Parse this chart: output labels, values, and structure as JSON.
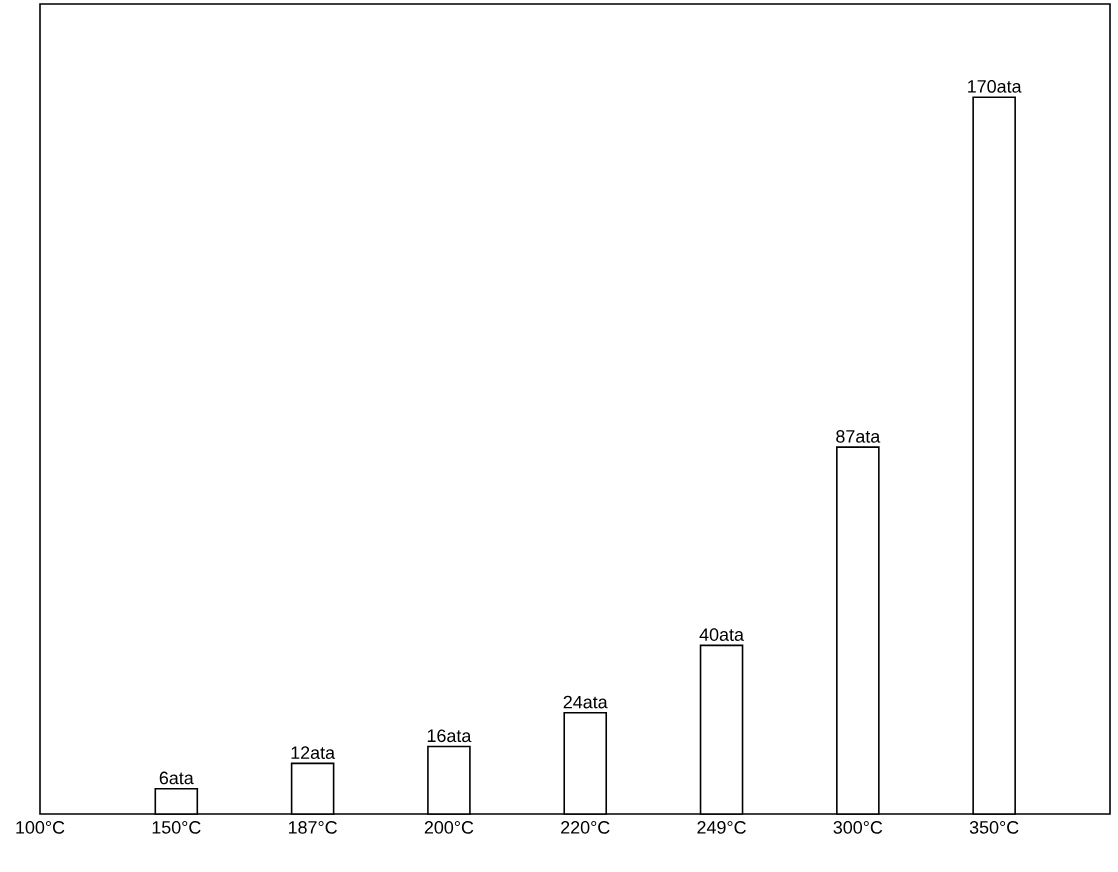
{
  "chart_data": {
    "type": "bar",
    "categories": [
      "100°C",
      "150°C",
      "187°C",
      "200°C",
      "220°C",
      "249°C",
      "300°C",
      "350°C"
    ],
    "values": [
      null,
      6,
      12,
      16,
      24,
      40,
      87,
      170
    ],
    "value_labels": [
      null,
      "6ata",
      "12ata",
      "16ata",
      "24ata",
      "40ata",
      "87ata",
      "170ata"
    ],
    "color": "#ffffff"
  }
}
